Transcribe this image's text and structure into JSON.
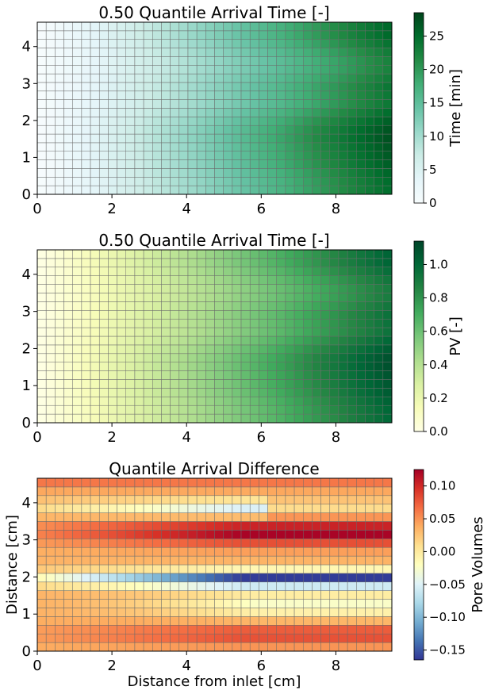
{
  "figure": {
    "background": "#ffffff"
  },
  "chart_data": [
    {
      "type": "heatmap",
      "title": "0.50 Quantile Arrival Time [-]",
      "xlabel": "",
      "ylabel": "",
      "xlim": [
        0,
        9.5
      ],
      "ylim": [
        0,
        4.66
      ],
      "xticks": [
        "0",
        "2",
        "4",
        "6",
        "8"
      ],
      "yticks": [
        "0",
        "1",
        "2",
        "3",
        "4"
      ],
      "grid": {
        "cols": 40,
        "rows": 20
      },
      "colormap": [
        "#f7fcfd",
        "#e5f5f9",
        "#ccece6",
        "#99d8c9",
        "#66c2a4",
        "#41ae76",
        "#238b45",
        "#006d2c",
        "#00441b"
      ],
      "colorbar": {
        "label": "Time [min]",
        "min": 0,
        "max": 28.5,
        "ticks": [
          "0",
          "5",
          "10",
          "15",
          "20",
          "25"
        ]
      },
      "value_range": [
        0,
        28.5
      ],
      "description_of_values": "arrival time increases with distance from inlet; faster (lower) bands near y=3-4.2, slower (higher) near y=1-2"
    },
    {
      "type": "heatmap",
      "title": "0.50 Quantile Arrival Time [-]",
      "xlabel": "",
      "ylabel": "",
      "xlim": [
        0,
        9.5
      ],
      "ylim": [
        0,
        4.66
      ],
      "xticks": [
        "0",
        "2",
        "4",
        "6",
        "8"
      ],
      "yticks": [
        "0",
        "1",
        "2",
        "3",
        "4"
      ],
      "grid": {
        "cols": 40,
        "rows": 20
      },
      "colormap": [
        "#ffffe5",
        "#f7fcb9",
        "#d9f0a3",
        "#addd8e",
        "#78c679",
        "#41ab5d",
        "#238443",
        "#006837",
        "#004529"
      ],
      "colorbar": {
        "label": "PV [-]",
        "min": 0,
        "max": 1.14,
        "ticks": [
          "0.0",
          "0.2",
          "0.4",
          "0.6",
          "0.8",
          "1.0"
        ]
      },
      "value_range": [
        0,
        1.14
      ]
    },
    {
      "type": "heatmap",
      "title": "Quantile Arrival Difference",
      "xlabel": "Distance from inlet [cm]",
      "ylabel": "Distance [cm]",
      "xlim": [
        0,
        9.5
      ],
      "ylim": [
        0,
        4.66
      ],
      "xticks": [
        "0",
        "2",
        "4",
        "6",
        "8"
      ],
      "yticks": [
        "0",
        "1",
        "2",
        "3",
        "4"
      ],
      "grid": {
        "cols": 40,
        "rows": 20
      },
      "colormap": [
        "#313695",
        "#4575b4",
        "#74add1",
        "#abd9e9",
        "#e0f3f8",
        "#ffffbf",
        "#fee090",
        "#fdae61",
        "#f46d43",
        "#d73027",
        "#a50026"
      ],
      "colorbar": {
        "label": "Pore Volumes",
        "min": -0.165,
        "max": 0.125,
        "ticks": [
          "−0.15",
          "−0.10",
          "−0.05",
          "0.00",
          "0.05",
          "0.10"
        ]
      },
      "value_range": [
        -0.165,
        0.125
      ]
    }
  ]
}
